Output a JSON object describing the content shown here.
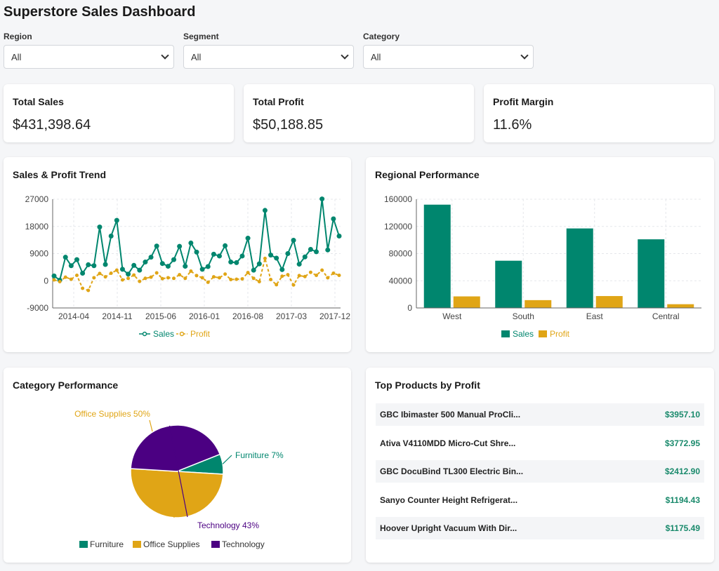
{
  "header": {
    "title": "Superstore Sales Dashboard"
  },
  "filters": [
    {
      "label": "Region",
      "value": "All"
    },
    {
      "label": "Segment",
      "value": "All"
    },
    {
      "label": "Category",
      "value": "All"
    }
  ],
  "kpis": [
    {
      "title": "Total Sales",
      "value": "$431,398.64"
    },
    {
      "title": "Total Profit",
      "value": "$50,188.85"
    },
    {
      "title": "Profit Margin",
      "value": "11.6%"
    }
  ],
  "colors": {
    "sales": "#00866e",
    "profit": "#e0a516",
    "technology": "#4b0082",
    "card_bg": "#ffffff"
  },
  "trend_card": {
    "title": "Sales & Profit Trend"
  },
  "regional_card": {
    "title": "Regional Performance"
  },
  "category_card": {
    "title": "Category Performance"
  },
  "products_card": {
    "title": "Top Products by Profit",
    "items": [
      {
        "name": "GBC Ibimaster 500 Manual ProCli...",
        "profit": "$3957.10"
      },
      {
        "name": "Ativa V4110MDD Micro-Cut Shre...",
        "profit": "$3772.95"
      },
      {
        "name": "GBC DocuBind TL300 Electric Bin...",
        "profit": "$2412.90"
      },
      {
        "name": "Sanyo Counter Height Refrigerat...",
        "profit": "$1194.43"
      },
      {
        "name": "Hoover Upright Vacuum With Dir...",
        "profit": "$1175.49"
      }
    ]
  },
  "chart_data": [
    {
      "type": "line",
      "title": "Sales & Profit Trend",
      "x_tick_labels": [
        "2014-04",
        "2014-11",
        "2015-06",
        "2016-01",
        "2016-08",
        "2017-03",
        "2017-12"
      ],
      "y_ticks": [
        -9000,
        0,
        9000,
        18000,
        27000
      ],
      "ylim": [
        -9000,
        27000
      ],
      "grid": true,
      "legend": "bottom",
      "series": [
        {
          "name": "Sales",
          "values": [
            1600,
            200,
            7800,
            5000,
            7000,
            2500,
            5300,
            5000,
            17800,
            5400,
            14800,
            20000,
            3800,
            2200,
            5100,
            3500,
            6200,
            7800,
            11500,
            5700,
            4800,
            7000,
            11400,
            4800,
            12500,
            9500,
            3800,
            4700,
            8800,
            8200,
            11600,
            6200,
            6000,
            8200,
            14100,
            3500,
            5600,
            23300,
            8500,
            7500,
            3700,
            9000,
            13400,
            5500,
            7900,
            10400,
            9600,
            27100,
            10200,
            20500,
            14800
          ]
        },
        {
          "name": "Profit",
          "values": [
            300,
            -300,
            1200,
            500,
            1800,
            -2500,
            -3200,
            1000,
            2400,
            1300,
            2500,
            3500,
            300,
            800,
            1900,
            -200,
            800,
            1200,
            2600,
            700,
            1000,
            800,
            2000,
            800,
            3200,
            1700,
            1000,
            -500,
            1300,
            1000,
            2200,
            400,
            500,
            600,
            2700,
            800,
            -300,
            7400,
            400,
            -1300,
            1500,
            2000,
            -1400,
            1700,
            1400,
            2800,
            1800,
            3500,
            1000,
            2500,
            1800
          ]
        }
      ]
    },
    {
      "type": "bar",
      "title": "Regional Performance",
      "categories": [
        "West",
        "South",
        "East",
        "Central"
      ],
      "y_ticks": [
        0,
        40000,
        80000,
        120000,
        160000
      ],
      "ylim": [
        0,
        160000
      ],
      "grid": true,
      "legend": "bottom",
      "series": [
        {
          "name": "Sales",
          "values": [
            152000,
            69500,
            117000,
            101000
          ]
        },
        {
          "name": "Profit",
          "values": [
            17000,
            11500,
            17500,
            5500
          ]
        }
      ]
    },
    {
      "type": "pie",
      "title": "Category Performance",
      "legend": "bottom",
      "categories": [
        "Furniture",
        "Office Supplies",
        "Technology"
      ],
      "values": [
        7,
        50,
        43
      ],
      "slice_labels": [
        "Furniture 7%",
        "Office Supplies 50%",
        "Technology 43%"
      ],
      "colors": [
        "#00866e",
        "#e0a516",
        "#4b0082"
      ]
    }
  ]
}
